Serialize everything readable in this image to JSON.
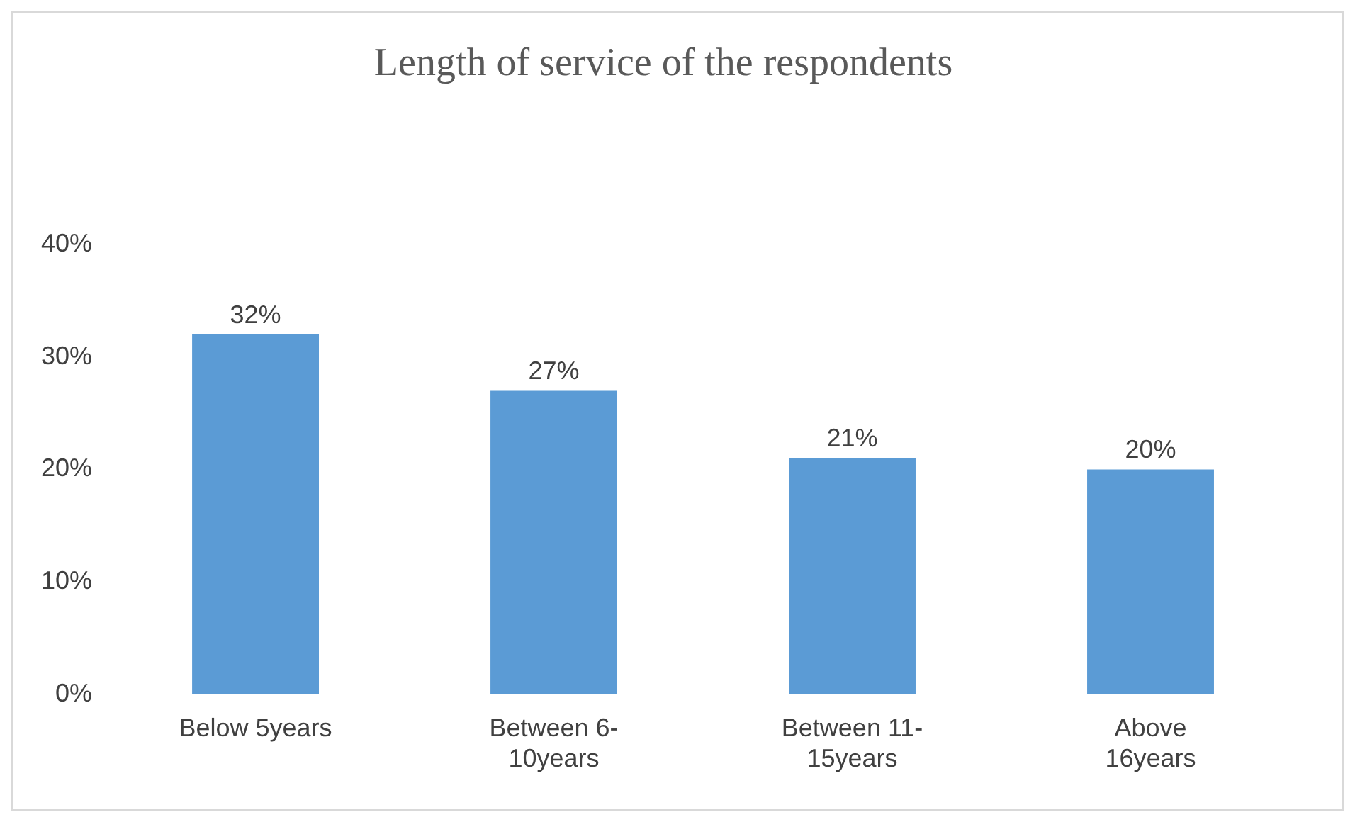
{
  "chart_data": {
    "type": "bar",
    "title": "Length of service of the respondents",
    "categories": [
      "Below 5years",
      "Between 6-10years",
      "Between 11-15years",
      "Above 16years"
    ],
    "values": [
      32,
      27,
      21,
      20
    ],
    "color": "#5b9bd5",
    "value_labels": [
      "32%",
      "27%",
      "21%",
      "20%"
    ],
    "ylim": [
      0,
      40
    ],
    "yticks": [
      {
        "value": 0,
        "label": "0%"
      },
      {
        "value": 10,
        "label": "10%"
      },
      {
        "value": 20,
        "label": "20%"
      },
      {
        "value": 30,
        "label": "30%"
      },
      {
        "value": 40,
        "label": "40%"
      }
    ],
    "grid": false,
    "legend": false
  }
}
